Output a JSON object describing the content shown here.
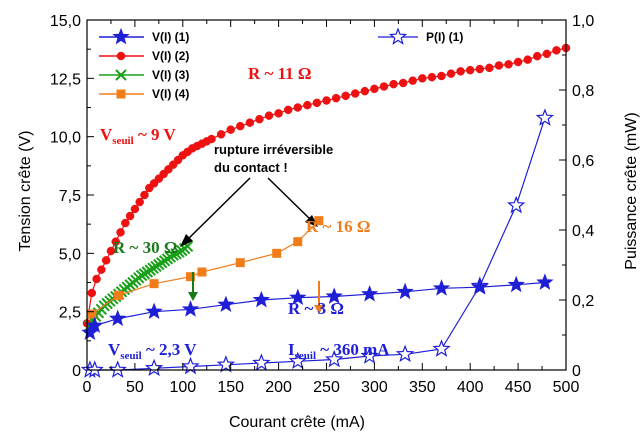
{
  "chart_data": {
    "type": "line",
    "xlabel": "Courant crête (mA)",
    "ylabel": "Tension crête (V)",
    "y2label": "Puissance crête (mW)",
    "xlim": [
      0,
      500
    ],
    "ylim": [
      0,
      15
    ],
    "y2lim": [
      0,
      1.0
    ],
    "x_ticks": [
      "0",
      "50",
      "100",
      "150",
      "200",
      "250",
      "300",
      "350",
      "400",
      "450",
      "500"
    ],
    "y_ticks": [
      "0",
      "2,5",
      "5,0",
      "7,5",
      "10,0",
      "12,5",
      "15,0"
    ],
    "y2_ticks": [
      "0",
      "0,2",
      "0,4",
      "0,6",
      "0,8",
      "1,0"
    ],
    "grid": false,
    "legend_position": "top-left",
    "series": [
      {
        "name": "V(I) (1)",
        "color": "#1f1fd6",
        "marker": "star-filled",
        "axis": "left",
        "x": [
          3,
          8,
          32,
          70,
          108,
          145,
          182,
          220,
          258,
          295,
          332,
          370,
          410,
          448,
          478
        ],
        "y": [
          1.6,
          1.9,
          2.2,
          2.5,
          2.6,
          2.8,
          3.0,
          3.1,
          3.15,
          3.25,
          3.35,
          3.5,
          3.55,
          3.65,
          3.75
        ]
      },
      {
        "name": "V(I) (2)",
        "color": "#ee1111",
        "marker": "circle",
        "axis": "left",
        "x": [
          0,
          5,
          10,
          15,
          20,
          25,
          30,
          35,
          40,
          45,
          50,
          55,
          60,
          65,
          70,
          75,
          80,
          85,
          90,
          95,
          100,
          105,
          110,
          115,
          120,
          125,
          130,
          140,
          150,
          160,
          170,
          180,
          190,
          200,
          210,
          220,
          230,
          240,
          250,
          260,
          270,
          280,
          290,
          300,
          310,
          320,
          330,
          340,
          350,
          360,
          370,
          380,
          390,
          400,
          410,
          420,
          430,
          440,
          450,
          460,
          470,
          480,
          490,
          500
        ],
        "y": [
          2.0,
          3.3,
          3.9,
          4.3,
          4.7,
          5.1,
          5.5,
          5.9,
          6.3,
          6.6,
          6.9,
          7.2,
          7.5,
          7.8,
          8.0,
          8.2,
          8.4,
          8.6,
          8.8,
          9.0,
          9.2,
          9.35,
          9.5,
          9.6,
          9.7,
          9.8,
          9.9,
          10.1,
          10.3,
          10.45,
          10.6,
          10.75,
          10.9,
          11.0,
          11.15,
          11.25,
          11.35,
          11.45,
          11.55,
          11.65,
          11.75,
          11.85,
          11.95,
          12.05,
          12.15,
          12.25,
          12.3,
          12.4,
          12.5,
          12.55,
          12.6,
          12.7,
          12.8,
          12.85,
          12.9,
          12.95,
          13.05,
          13.1,
          13.2,
          13.3,
          13.45,
          13.55,
          13.7,
          13.8
        ]
      },
      {
        "name": "V(I) (3)",
        "color": "#1aa01a",
        "marker": "cross",
        "axis": "left",
        "x": [
          3,
          6,
          9,
          12,
          15,
          18,
          21,
          24,
          27,
          30,
          33,
          36,
          39,
          42,
          45,
          48,
          51,
          54,
          57,
          60,
          63,
          66,
          69,
          72,
          75,
          78,
          81,
          84,
          87,
          90,
          93,
          96,
          99,
          102,
          105
        ],
        "y": [
          1.9,
          2.1,
          2.3,
          2.45,
          2.6,
          2.75,
          2.85,
          2.95,
          3.05,
          3.15,
          3.25,
          3.35,
          3.45,
          3.55,
          3.65,
          3.75,
          3.85,
          3.95,
          4.05,
          4.12,
          4.2,
          4.28,
          4.36,
          4.44,
          4.52,
          4.6,
          4.68,
          4.76,
          4.84,
          4.92,
          4.98,
          5.05,
          5.12,
          5.2,
          5.3
        ]
      },
      {
        "name": "V(I) (4)",
        "color": "#f07d1a",
        "marker": "square",
        "axis": "left",
        "x": [
          5,
          33,
          70,
          108,
          120,
          160,
          198,
          220,
          242
        ],
        "y": [
          2.4,
          3.2,
          3.7,
          4.0,
          4.2,
          4.6,
          5.0,
          5.5,
          6.4
        ]
      },
      {
        "name": "P(I) (1)",
        "color": "#1f1fd6",
        "marker": "star-open",
        "axis": "right",
        "x": [
          3,
          8,
          32,
          70,
          108,
          145,
          182,
          220,
          258,
          295,
          332,
          370,
          410,
          448,
          478
        ],
        "y": [
          0.0,
          0.0,
          0.0,
          0.005,
          0.01,
          0.015,
          0.02,
          0.025,
          0.03,
          0.04,
          0.045,
          0.06,
          0.24,
          0.47,
          0.72
        ]
      }
    ],
    "annotations": {
      "r11": "R ~ 11 Ω",
      "vseuil9_main": "V",
      "vseuil9_sub": "seuil",
      "vseuil9_tail": " ~ 9 V",
      "rupture_line1": "rupture irréversible",
      "rupture_line2": "du contact !",
      "r30": "R ~ 30 Ω",
      "r16": "R ~ 16 Ω",
      "r3": "R ~ 3 Ω",
      "vseuil23_main": "V",
      "vseuil23_sub": "seuil",
      "vseuil23_tail": " ~ 2,3 V",
      "iseuil_main": "I",
      "iseuil_sub": "seuil",
      "iseuil_tail": " ~ 360 mA"
    }
  }
}
